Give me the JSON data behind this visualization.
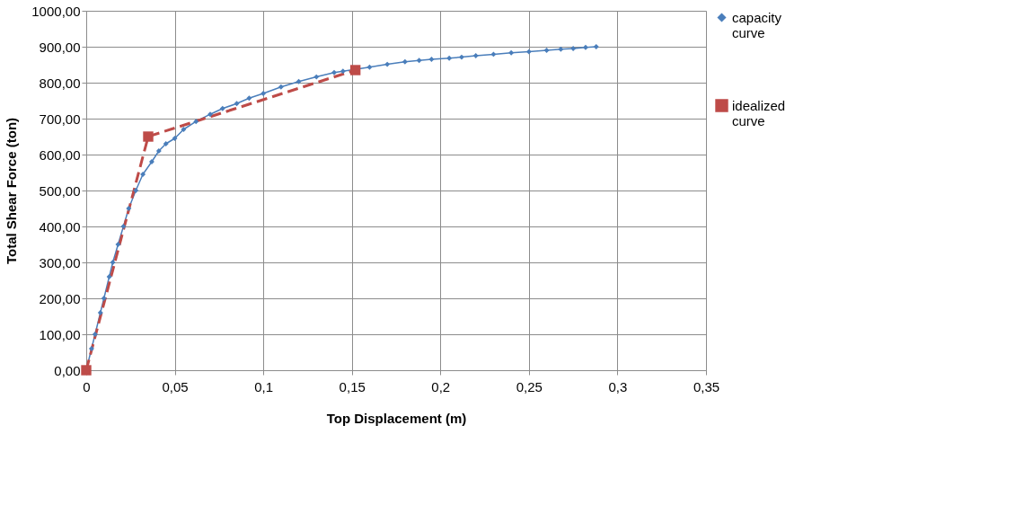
{
  "chart_data": {
    "type": "line",
    "xlabel": "Top Displacement (m)",
    "ylabel": "Total Shear Force (ton)",
    "xlim": [
      0,
      0.35
    ],
    "ylim": [
      0,
      1000
    ],
    "xticks": [
      0,
      {
        "value": 0.05,
        "label": "0,05"
      },
      {
        "value": 0.1,
        "label": "0,1"
      },
      {
        "value": 0.15,
        "label": "0,15"
      },
      {
        "value": 0.2,
        "label": "0,2"
      },
      {
        "value": 0.25,
        "label": "0,25"
      },
      {
        "value": 0.3,
        "label": "0,3"
      },
      {
        "value": 0.35,
        "label": "0,35"
      }
    ],
    "yticks": [
      {
        "value": 0,
        "label": "0,00"
      },
      {
        "value": 100,
        "label": "100,00"
      },
      {
        "value": 200,
        "label": "200,00"
      },
      {
        "value": 300,
        "label": "300,00"
      },
      {
        "value": 400,
        "label": "400,00"
      },
      {
        "value": 500,
        "label": "500,00"
      },
      {
        "value": 600,
        "label": "600,00"
      },
      {
        "value": 700,
        "label": "700,00"
      },
      {
        "value": 800,
        "label": "800,00"
      },
      {
        "value": 900,
        "label": "900,00"
      },
      {
        "value": 1000,
        "label": "1000,00"
      }
    ],
    "grid": true,
    "legend": "right",
    "series": [
      {
        "name": "capacity curve",
        "color": "#4a7ebb",
        "marker": "diamond",
        "line_style": "solid",
        "x": [
          0,
          0.003,
          0.005,
          0.008,
          0.01,
          0.013,
          0.015,
          0.018,
          0.021,
          0.024,
          0.028,
          0.032,
          0.037,
          0.041,
          0.045,
          0.05,
          0.055,
          0.062,
          0.07,
          0.077,
          0.085,
          0.092,
          0.1,
          0.11,
          0.12,
          0.13,
          0.14,
          0.145,
          0.16,
          0.17,
          0.18,
          0.188,
          0.195,
          0.205,
          0.212,
          0.22,
          0.23,
          0.24,
          0.25,
          0.26,
          0.268,
          0.275,
          0.282,
          0.288
        ],
        "values": [
          0,
          60,
          100,
          160,
          200,
          260,
          300,
          350,
          400,
          450,
          500,
          545,
          580,
          610,
          630,
          645,
          670,
          692,
          712,
          728,
          742,
          757,
          770,
          788,
          803,
          816,
          828,
          832,
          843,
          851,
          858,
          862,
          865,
          868,
          871,
          875,
          879,
          883,
          886,
          890,
          893,
          895,
          898,
          900
        ]
      },
      {
        "name": "idealized curve",
        "color": "#be4b48",
        "marker": "square",
        "line_style": "dashed",
        "x": [
          0,
          0.035,
          0.152
        ],
        "values": [
          0,
          650,
          835
        ]
      }
    ]
  }
}
